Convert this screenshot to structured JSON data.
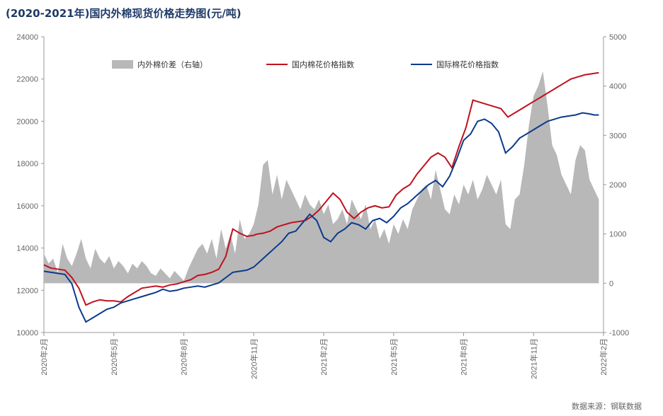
{
  "title": "(2020-2021年)国内外棉现货价格走势图(元/吨)",
  "source": "数据来源：钢联数据",
  "colors": {
    "gray": "#b8b8b8",
    "red": "#c0111f",
    "blue": "#0b3a8c",
    "axis": "#999999"
  },
  "chart_data": {
    "type": "line",
    "x_ticks": [
      "2020年2月",
      "2020年5月",
      "2020年8月",
      "2020年11月",
      "2021年2月",
      "2021年5月",
      "2021年8月",
      "2021年11月",
      "2022年2月"
    ],
    "y_left": {
      "min": 10000,
      "max": 24000,
      "ticks": [
        10000,
        12000,
        14000,
        16000,
        18000,
        20000,
        22000,
        24000
      ]
    },
    "y_right": {
      "min": -1000,
      "max": 5000,
      "ticks": [
        -1000,
        0,
        1000,
        2000,
        3000,
        4000,
        5000
      ]
    },
    "series": [
      {
        "name": "内外棉价差（右轴）",
        "type": "area",
        "axis": "right",
        "x": [
          0,
          0.2,
          0.4,
          0.6,
          0.8,
          1.0,
          1.2,
          1.4,
          1.6,
          1.8,
          2.0,
          2.2,
          2.4,
          2.6,
          2.8,
          3.0,
          3.2,
          3.4,
          3.6,
          3.8,
          4.0,
          4.2,
          4.4,
          4.6,
          4.8,
          5.0,
          5.2,
          5.4,
          5.6,
          5.8,
          6.0,
          6.2,
          6.4,
          6.6,
          6.8,
          7.0,
          7.2,
          7.4,
          7.6,
          7.8,
          8.0,
          8.2,
          8.4,
          8.6,
          8.8,
          9.0,
          9.2,
          9.4,
          9.6,
          9.8,
          10.0,
          10.2,
          10.4,
          10.6,
          10.8,
          11.0,
          11.2,
          11.4,
          11.6,
          11.8,
          12.0,
          12.2,
          12.4,
          12.6,
          12.8,
          13.0,
          13.2,
          13.4,
          13.6,
          13.8,
          14.0,
          14.2,
          14.4,
          14.6,
          14.8,
          15.0,
          15.2,
          15.4,
          15.6,
          15.8,
          16.0,
          16.2,
          16.4,
          16.6,
          16.8,
          17.0,
          17.2,
          17.4,
          17.6,
          17.8,
          18.0,
          18.2,
          18.4,
          18.6,
          18.8,
          19.0,
          19.2,
          19.4,
          19.6,
          19.8,
          20.0,
          20.2,
          20.4,
          20.6,
          20.8,
          21.0,
          21.2,
          21.4,
          21.6,
          21.8,
          22.0,
          22.2,
          22.4,
          22.6,
          22.8,
          23.0,
          23.2,
          23.4,
          23.6,
          23.8
        ],
        "values": [
          600,
          400,
          500,
          200,
          800,
          500,
          350,
          600,
          900,
          500,
          300,
          700,
          500,
          400,
          550,
          300,
          450,
          350,
          200,
          400,
          300,
          450,
          350,
          200,
          150,
          300,
          200,
          100,
          250,
          150,
          50,
          300,
          500,
          700,
          800,
          600,
          900,
          500,
          1100,
          700,
          1000,
          600,
          1300,
          900,
          1000,
          1200,
          1600,
          2400,
          2500,
          1800,
          2200,
          1700,
          2100,
          1900,
          1700,
          1500,
          1800,
          1600,
          1500,
          1700,
          1400,
          1600,
          1200,
          1300,
          1500,
          1200,
          1700,
          1500,
          1300,
          1600,
          1100,
          1300,
          900,
          1100,
          800,
          1200,
          1000,
          1300,
          1100,
          1500,
          1700,
          1900,
          2000,
          1700,
          2300,
          1900,
          1500,
          1400,
          1800,
          1600,
          2000,
          1800,
          2100,
          1700,
          1900,
          2200,
          2000,
          1800,
          2100,
          1200,
          1100,
          1700,
          1800,
          2400,
          3200,
          3800,
          4000,
          4300,
          3600,
          2800,
          2600,
          2200,
          2000,
          1800,
          2500,
          2800,
          2700,
          2100,
          1900,
          1700
        ]
      },
      {
        "name": "国内棉花价格指数",
        "type": "line",
        "axis": "left",
        "x": [
          0,
          0.3,
          0.6,
          0.9,
          1.2,
          1.5,
          1.8,
          2.1,
          2.4,
          2.7,
          3.0,
          3.3,
          3.6,
          3.9,
          4.2,
          4.5,
          4.8,
          5.1,
          5.4,
          5.7,
          6.0,
          6.3,
          6.6,
          6.9,
          7.2,
          7.5,
          7.8,
          8.1,
          8.4,
          8.7,
          9.0,
          9.1,
          9.4,
          9.7,
          10.0,
          10.3,
          10.6,
          10.9,
          11.2,
          11.5,
          11.8,
          12.1,
          12.4,
          12.7,
          13.0,
          13.3,
          13.6,
          13.9,
          14.2,
          14.5,
          14.8,
          15.1,
          15.4,
          15.7,
          16.0,
          16.3,
          16.6,
          16.9,
          17.2,
          17.5,
          17.8,
          18.1,
          18.4,
          18.7,
          19.0,
          19.3,
          19.6,
          19.9,
          20.2,
          20.5,
          20.8,
          21.1,
          21.4,
          21.7,
          22.0,
          22.3,
          22.6,
          22.9,
          23.2,
          23.5,
          23.8
        ],
        "values": [
          13200,
          13050,
          13000,
          12950,
          12600,
          12100,
          11300,
          11450,
          11550,
          11500,
          11500,
          11450,
          11700,
          11900,
          12100,
          12150,
          12200,
          12150,
          12250,
          12300,
          12400,
          12500,
          12700,
          12750,
          12850,
          13000,
          13600,
          14900,
          14700,
          14550,
          14600,
          14650,
          14700,
          14800,
          15000,
          15100,
          15200,
          15250,
          15300,
          15500,
          15800,
          16200,
          16600,
          16300,
          15700,
          15400,
          15700,
          15900,
          16000,
          15900,
          15950,
          16500,
          16800,
          17000,
          17500,
          17900,
          18300,
          18500,
          18300,
          17800,
          18800,
          19700,
          21000,
          20900,
          20800,
          20700,
          20600,
          20200,
          20400,
          20600,
          20800,
          21000,
          21200,
          21400,
          21600,
          21800,
          22000,
          22100,
          22200,
          22250,
          22300
        ]
      },
      {
        "name": "国际棉花价格指数",
        "type": "line",
        "axis": "left",
        "x": [
          0,
          0.3,
          0.6,
          0.9,
          1.2,
          1.5,
          1.8,
          2.1,
          2.4,
          2.7,
          3.0,
          3.3,
          3.6,
          3.9,
          4.2,
          4.5,
          4.8,
          5.1,
          5.4,
          5.7,
          6.0,
          6.3,
          6.6,
          6.9,
          7.2,
          7.5,
          7.8,
          8.1,
          8.4,
          8.7,
          9.0,
          9.3,
          9.6,
          9.9,
          10.2,
          10.5,
          10.8,
          11.1,
          11.4,
          11.7,
          12.0,
          12.3,
          12.6,
          12.9,
          13.2,
          13.5,
          13.8,
          14.1,
          14.4,
          14.7,
          15.0,
          15.3,
          15.6,
          15.9,
          16.2,
          16.5,
          16.8,
          17.1,
          17.4,
          17.7,
          18.0,
          18.3,
          18.6,
          18.9,
          19.2,
          19.5,
          19.8,
          20.1,
          20.4,
          20.7,
          21.0,
          21.3,
          21.6,
          21.9,
          22.2,
          22.5,
          22.8,
          23.1,
          23.4,
          23.6,
          23.8
        ],
        "values": [
          12900,
          12850,
          12800,
          12750,
          12300,
          11200,
          10500,
          10700,
          10900,
          11100,
          11200,
          11400,
          11500,
          11600,
          11700,
          11800,
          11900,
          12050,
          11950,
          12000,
          12100,
          12150,
          12200,
          12150,
          12250,
          12350,
          12600,
          12850,
          12900,
          12950,
          13100,
          13400,
          13700,
          14000,
          14300,
          14700,
          14800,
          15200,
          15600,
          15300,
          14500,
          14300,
          14700,
          14900,
          15200,
          15100,
          14900,
          15300,
          15400,
          15200,
          15500,
          15900,
          16100,
          16400,
          16700,
          17000,
          17200,
          16900,
          17400,
          18200,
          19100,
          19400,
          20000,
          20100,
          19900,
          19500,
          18500,
          18800,
          19200,
          19400,
          19600,
          19800,
          20000,
          20100,
          20200,
          20250,
          20300,
          20400,
          20350,
          20300,
          20300
        ]
      }
    ]
  }
}
